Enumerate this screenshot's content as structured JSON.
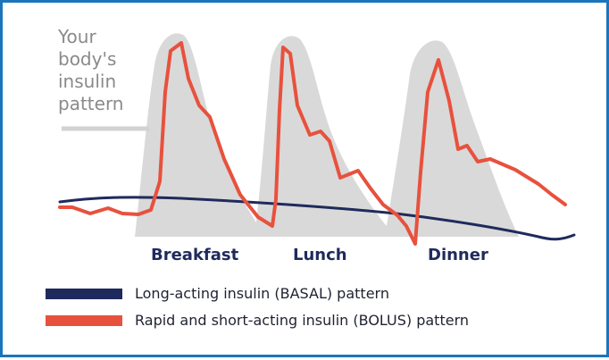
{
  "body_label": {
    "lines": [
      "Your",
      "body's",
      "insulin",
      "pattern"
    ]
  },
  "meals": {
    "breakfast": "Breakfast",
    "lunch": "Lunch",
    "dinner": "Dinner"
  },
  "legend": {
    "basal": "Long-acting insulin (BASAL) pattern",
    "bolus": "Rapid and short-acting insulin (BOLUS) pattern"
  },
  "colors": {
    "border": "#1b75bc",
    "body_curve": "#d9d9d9",
    "basal": "#1f2a5c",
    "bolus": "#e8513d",
    "label_gray": "#8a8a8a"
  }
}
